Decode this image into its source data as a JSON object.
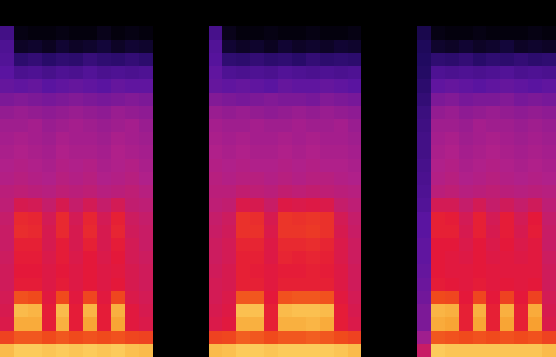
{
  "chart_data": {
    "type": "heatmap",
    "tick_labels": false,
    "zlim": [
      0,
      100
    ],
    "cells": [
      [
        0,
        0,
        0,
        0,
        0,
        0,
        0,
        0,
        0,
        0,
        0,
        0,
        0,
        0,
        0,
        0,
        0,
        0,
        0,
        0,
        0,
        0,
        0,
        0,
        0,
        0,
        0,
        0,
        0,
        0,
        0,
        0,
        0,
        0,
        0,
        0,
        0,
        0,
        0,
        0
      ],
      [
        0,
        0,
        0,
        0,
        0,
        0,
        0,
        0,
        0,
        0,
        0,
        0,
        0,
        0,
        0,
        0,
        0,
        0,
        0,
        0,
        0,
        0,
        0,
        0,
        0,
        0,
        0,
        0,
        0,
        0,
        0,
        0,
        0,
        0,
        0,
        0,
        0,
        0,
        0,
        0
      ],
      [
        24,
        3,
        2,
        2,
        3,
        2,
        2,
        4,
        2,
        3,
        2,
        0,
        0,
        0,
        0,
        25,
        4,
        2,
        2,
        3,
        2,
        2,
        3,
        2,
        2,
        3,
        0,
        0,
        0,
        0,
        12,
        3,
        2,
        2,
        3,
        2,
        2,
        2,
        3,
        2
      ],
      [
        27,
        6,
        7,
        5,
        8,
        6,
        7,
        9,
        6,
        8,
        7,
        0,
        0,
        0,
        0,
        28,
        8,
        6,
        7,
        5,
        8,
        6,
        7,
        6,
        8,
        7,
        0,
        0,
        0,
        0,
        14,
        7,
        6,
        8,
        6,
        7,
        9,
        6,
        7,
        6
      ],
      [
        28,
        18,
        20,
        17,
        19,
        18,
        21,
        19,
        18,
        20,
        18,
        0,
        0,
        0,
        0,
        29,
        19,
        18,
        20,
        18,
        19,
        17,
        20,
        18,
        19,
        18,
        0,
        0,
        0,
        0,
        15,
        19,
        18,
        20,
        17,
        19,
        18,
        20,
        18,
        19
      ],
      [
        30,
        26,
        27,
        25,
        27,
        26,
        28,
        26,
        27,
        26,
        27,
        0,
        0,
        0,
        0,
        31,
        27,
        26,
        27,
        26,
        28,
        27,
        26,
        27,
        26,
        27,
        0,
        0,
        0,
        0,
        16,
        27,
        26,
        27,
        26,
        27,
        28,
        26,
        27,
        26
      ],
      [
        32,
        31,
        32,
        30,
        31,
        32,
        31,
        30,
        32,
        31,
        31,
        0,
        0,
        0,
        0,
        32,
        31,
        32,
        31,
        30,
        32,
        31,
        31,
        32,
        31,
        30,
        0,
        0,
        0,
        0,
        18,
        31,
        32,
        31,
        30,
        31,
        32,
        31,
        30,
        31
      ],
      [
        36,
        37,
        36,
        35,
        36,
        37,
        36,
        35,
        36,
        37,
        36,
        0,
        0,
        0,
        0,
        37,
        36,
        35,
        36,
        37,
        36,
        36,
        35,
        37,
        36,
        35,
        0,
        0,
        0,
        0,
        20,
        36,
        37,
        35,
        36,
        36,
        37,
        35,
        36,
        35
      ],
      [
        40,
        41,
        40,
        39,
        40,
        41,
        40,
        39,
        41,
        40,
        39,
        0,
        0,
        0,
        0,
        41,
        40,
        41,
        40,
        39,
        40,
        41,
        40,
        41,
        40,
        39,
        0,
        0,
        0,
        0,
        22,
        40,
        41,
        39,
        40,
        41,
        40,
        39,
        40,
        39
      ],
      [
        42,
        42,
        43,
        41,
        42,
        43,
        42,
        41,
        42,
        43,
        41,
        0,
        0,
        0,
        0,
        43,
        42,
        42,
        43,
        42,
        42,
        43,
        42,
        42,
        43,
        41,
        0,
        0,
        0,
        0,
        23,
        42,
        42,
        41,
        43,
        42,
        42,
        41,
        42,
        41
      ],
      [
        43,
        44,
        43,
        42,
        44,
        43,
        43,
        42,
        44,
        43,
        42,
        0,
        0,
        0,
        0,
        44,
        43,
        44,
        43,
        43,
        44,
        43,
        44,
        43,
        43,
        42,
        0,
        0,
        0,
        0,
        24,
        43,
        44,
        42,
        43,
        44,
        43,
        42,
        43,
        42
      ],
      [
        44,
        45,
        44,
        43,
        45,
        44,
        44,
        43,
        45,
        44,
        43,
        0,
        0,
        0,
        0,
        45,
        44,
        45,
        44,
        44,
        45,
        44,
        45,
        44,
        44,
        43,
        0,
        0,
        0,
        0,
        24,
        44,
        45,
        43,
        44,
        45,
        44,
        43,
        44,
        43
      ],
      [
        45,
        46,
        45,
        44,
        46,
        45,
        46,
        44,
        45,
        46,
        44,
        0,
        0,
        0,
        0,
        46,
        45,
        46,
        45,
        45,
        46,
        45,
        46,
        45,
        45,
        44,
        0,
        0,
        0,
        0,
        25,
        45,
        46,
        44,
        45,
        46,
        45,
        44,
        45,
        44
      ],
      [
        46,
        47,
        46,
        45,
        47,
        46,
        47,
        45,
        46,
        47,
        45,
        0,
        0,
        0,
        0,
        47,
        46,
        47,
        47,
        46,
        47,
        46,
        47,
        47,
        46,
        45,
        0,
        0,
        0,
        0,
        26,
        46,
        47,
        45,
        46,
        47,
        46,
        45,
        46,
        45
      ],
      [
        48,
        49,
        48,
        47,
        49,
        48,
        49,
        47,
        48,
        49,
        47,
        0,
        0,
        0,
        0,
        48,
        48,
        50,
        49,
        48,
        50,
        49,
        50,
        49,
        48,
        47,
        0,
        0,
        0,
        0,
        27,
        48,
        49,
        47,
        48,
        49,
        48,
        47,
        48,
        47
      ],
      [
        49,
        56,
        55,
        51,
        56,
        51,
        55,
        51,
        55,
        50,
        49,
        0,
        0,
        0,
        0,
        49,
        50,
        57,
        56,
        52,
        58,
        57,
        58,
        57,
        51,
        49,
        0,
        0,
        0,
        0,
        28,
        55,
        55,
        51,
        55,
        51,
        54,
        51,
        54,
        49
      ],
      [
        51,
        64,
        63,
        55,
        64,
        55,
        63,
        55,
        62,
        53,
        51,
        0,
        0,
        0,
        0,
        51,
        53,
        66,
        65,
        56,
        67,
        66,
        67,
        66,
        55,
        51,
        0,
        0,
        0,
        0,
        30,
        62,
        61,
        55,
        62,
        55,
        61,
        55,
        60,
        51
      ],
      [
        52,
        65,
        64,
        56,
        64,
        56,
        64,
        56,
        63,
        54,
        52,
        0,
        0,
        0,
        0,
        52,
        54,
        66,
        66,
        57,
        67,
        67,
        68,
        66,
        56,
        52,
        0,
        0,
        0,
        0,
        30,
        62,
        62,
        56,
        62,
        56,
        61,
        56,
        61,
        52
      ],
      [
        52,
        62,
        62,
        56,
        61,
        56,
        62,
        56,
        61,
        55,
        52,
        0,
        0,
        0,
        0,
        53,
        55,
        63,
        63,
        58,
        64,
        64,
        65,
        63,
        57,
        53,
        0,
        0,
        0,
        0,
        31,
        60,
        60,
        57,
        60,
        57,
        60,
        57,
        59,
        52
      ],
      [
        53,
        61,
        61,
        57,
        61,
        57,
        60,
        57,
        60,
        55,
        53,
        0,
        0,
        0,
        0,
        53,
        55,
        62,
        62,
        58,
        63,
        62,
        63,
        62,
        57,
        53,
        0,
        0,
        0,
        0,
        31,
        60,
        59,
        58,
        60,
        58,
        59,
        58,
        59,
        53
      ],
      [
        54,
        60,
        60,
        58,
        60,
        58,
        60,
        58,
        59,
        56,
        54,
        0,
        0,
        0,
        0,
        54,
        56,
        62,
        61,
        59,
        61,
        61,
        62,
        61,
        58,
        54,
        0,
        0,
        0,
        0,
        32,
        60,
        59,
        59,
        60,
        59,
        59,
        59,
        59,
        54
      ],
      [
        54,
        61,
        61,
        58,
        61,
        58,
        60,
        58,
        60,
        56,
        54,
        0,
        0,
        0,
        0,
        55,
        56,
        62,
        62,
        59,
        62,
        62,
        62,
        62,
        58,
        54,
        0,
        0,
        0,
        0,
        33,
        61,
        60,
        59,
        61,
        59,
        60,
        59,
        60,
        54
      ],
      [
        55,
        73,
        72,
        59,
        72,
        59,
        71,
        59,
        71,
        57,
        55,
        0,
        0,
        0,
        0,
        55,
        57,
        74,
        74,
        60,
        73,
        74,
        74,
        73,
        59,
        55,
        0,
        0,
        0,
        0,
        34,
        72,
        71,
        60,
        71,
        60,
        70,
        60,
        70,
        55
      ],
      [
        56,
        90,
        89,
        61,
        90,
        61,
        89,
        61,
        88,
        59,
        56,
        0,
        0,
        0,
        0,
        56,
        58,
        91,
        91,
        62,
        90,
        91,
        91,
        90,
        61,
        56,
        0,
        0,
        0,
        0,
        36,
        89,
        88,
        62,
        88,
        62,
        88,
        62,
        87,
        56
      ],
      [
        57,
        87,
        87,
        61,
        88,
        61,
        86,
        61,
        86,
        59,
        57,
        0,
        0,
        0,
        0,
        57,
        59,
        88,
        88,
        62,
        88,
        88,
        89,
        87,
        61,
        57,
        0,
        0,
        0,
        0,
        36,
        87,
        86,
        62,
        86,
        62,
        86,
        62,
        85,
        57
      ],
      [
        70,
        74,
        74,
        72,
        74,
        72,
        73,
        72,
        73,
        71,
        70,
        0,
        0,
        0,
        0,
        70,
        71,
        75,
        74,
        72,
        74,
        74,
        75,
        74,
        72,
        70,
        0,
        0,
        0,
        0,
        42,
        74,
        73,
        72,
        73,
        72,
        73,
        72,
        73,
        70
      ],
      [
        90,
        93,
        93,
        92,
        93,
        92,
        93,
        92,
        93,
        91,
        90,
        0,
        0,
        0,
        0,
        90,
        91,
        93,
        93,
        92,
        93,
        93,
        93,
        93,
        92,
        90,
        0,
        0,
        0,
        0,
        52,
        93,
        92,
        92,
        92,
        92,
        92,
        92,
        92,
        90
      ]
    ]
  }
}
